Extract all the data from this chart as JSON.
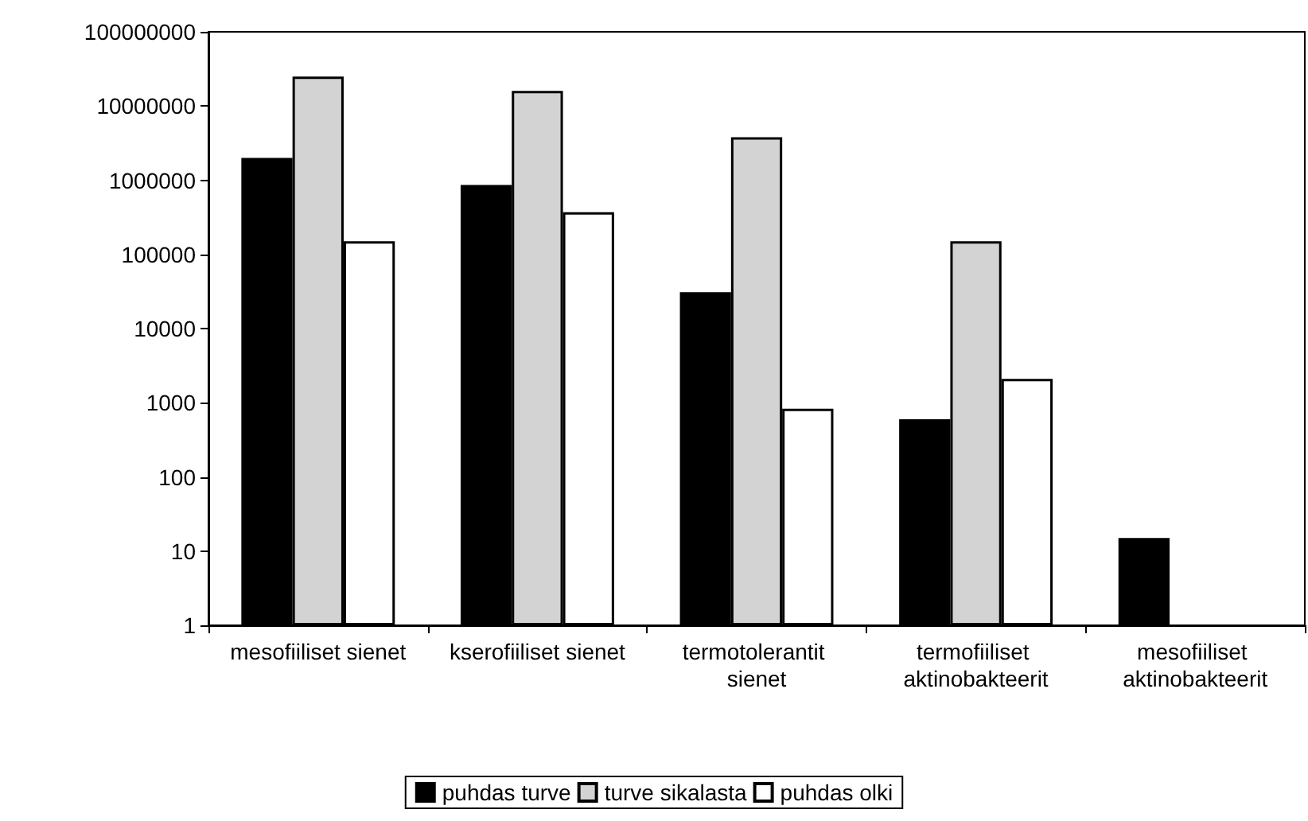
{
  "chart_data": {
    "type": "bar",
    "log": true,
    "grid": false,
    "legend": "bottom",
    "categories": [
      "mesofiiliset sienet",
      "kserofiiliset sienet",
      "termotolerantit sienet",
      "termofiiliset aktinobakteerit",
      "mesofiiliset aktinobakteerit"
    ],
    "ylim": [
      1,
      100000000
    ],
    "yticks": [
      1,
      10,
      100,
      1000,
      10000,
      100000,
      1000000,
      10000000,
      100000000
    ],
    "series": [
      {
        "name": "puhdas turve",
        "color": "#000000",
        "values": [
          2000000,
          860000,
          31000,
          600,
          15
        ]
      },
      {
        "name": "turve sikalasta",
        "color": "#d3d3d3",
        "values": [
          25000000,
          16000000,
          3800000,
          150000,
          null
        ]
      },
      {
        "name": "puhdas olki",
        "color": "#ffffff",
        "values": [
          150000,
          370000,
          830,
          2100,
          null
        ]
      }
    ]
  }
}
